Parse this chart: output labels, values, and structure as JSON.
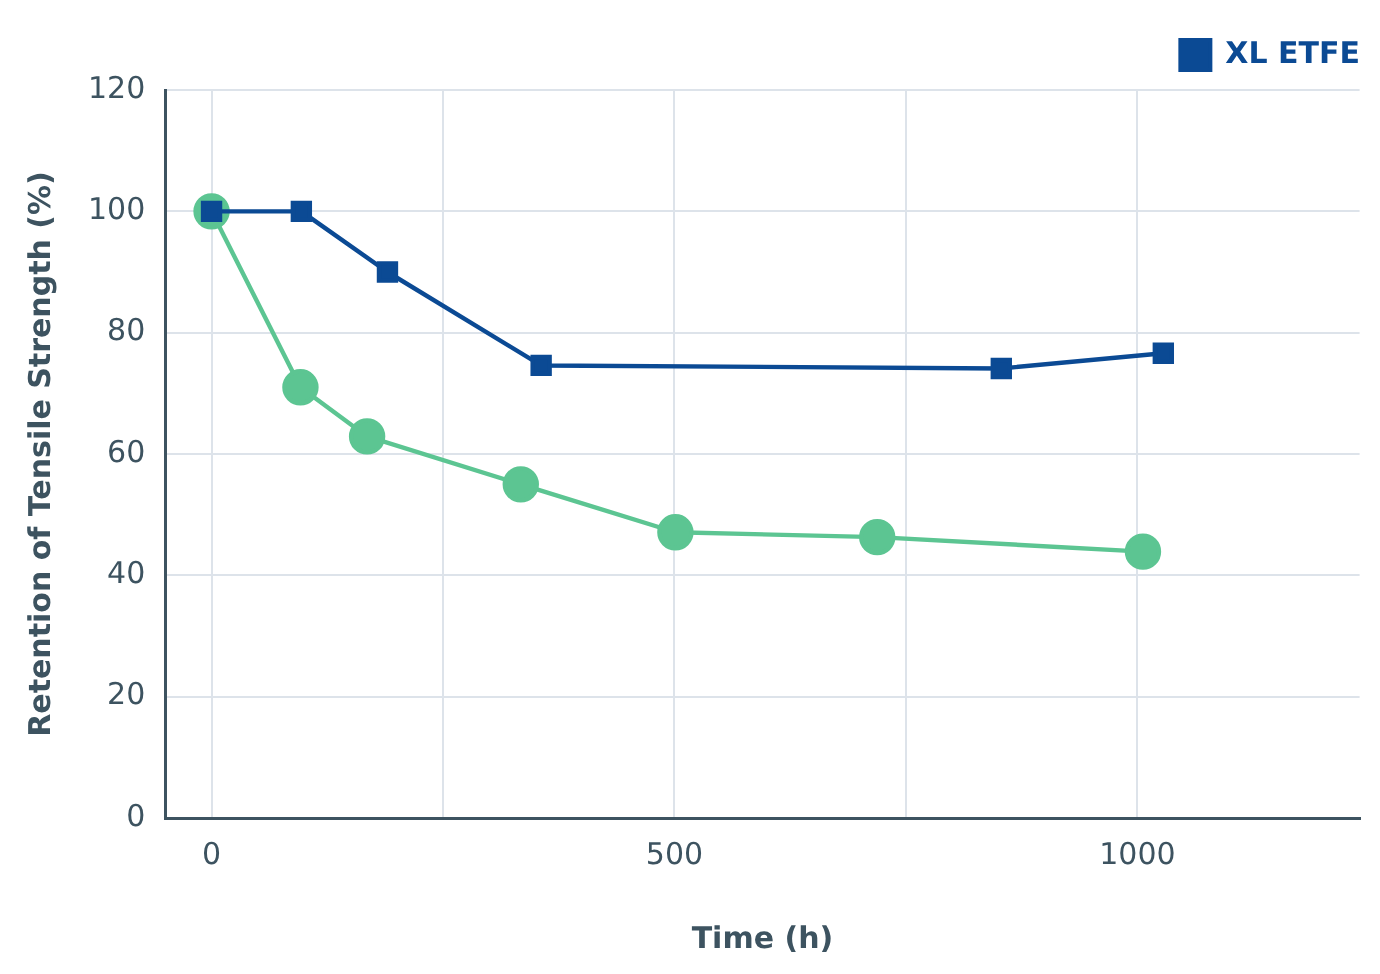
{
  "chart_data": {
    "type": "line",
    "xlabel": "Time (h)",
    "ylabel": "Retention of Tensile Strength (%)",
    "xlim": [
      -50,
      1240
    ],
    "ylim": [
      0,
      120
    ],
    "xticks": [
      0,
      {
        "value": 250,
        "label": null
      },
      500,
      {
        "value": 750,
        "label": null
      },
      1000
    ],
    "yticks": [
      0,
      20,
      40,
      60,
      80,
      100,
      120
    ],
    "grid": true,
    "legend": "top right",
    "series": [
      {
        "name": "XL ETFE",
        "color": "#0b4a94",
        "marker": "square",
        "x": [
          0,
          97,
          190,
          356,
          853,
          1028
        ],
        "values": [
          100,
          100,
          90,
          74.6,
          74.1,
          76.6
        ]
      },
      {
        "color": "#5cc592",
        "marker": "circle",
        "x": [
          0,
          96,
          168,
          334,
          501,
          719,
          1006
        ],
        "values": [
          100,
          71,
          62.9,
          55,
          47.1,
          46.3,
          43.9
        ]
      }
    ]
  }
}
